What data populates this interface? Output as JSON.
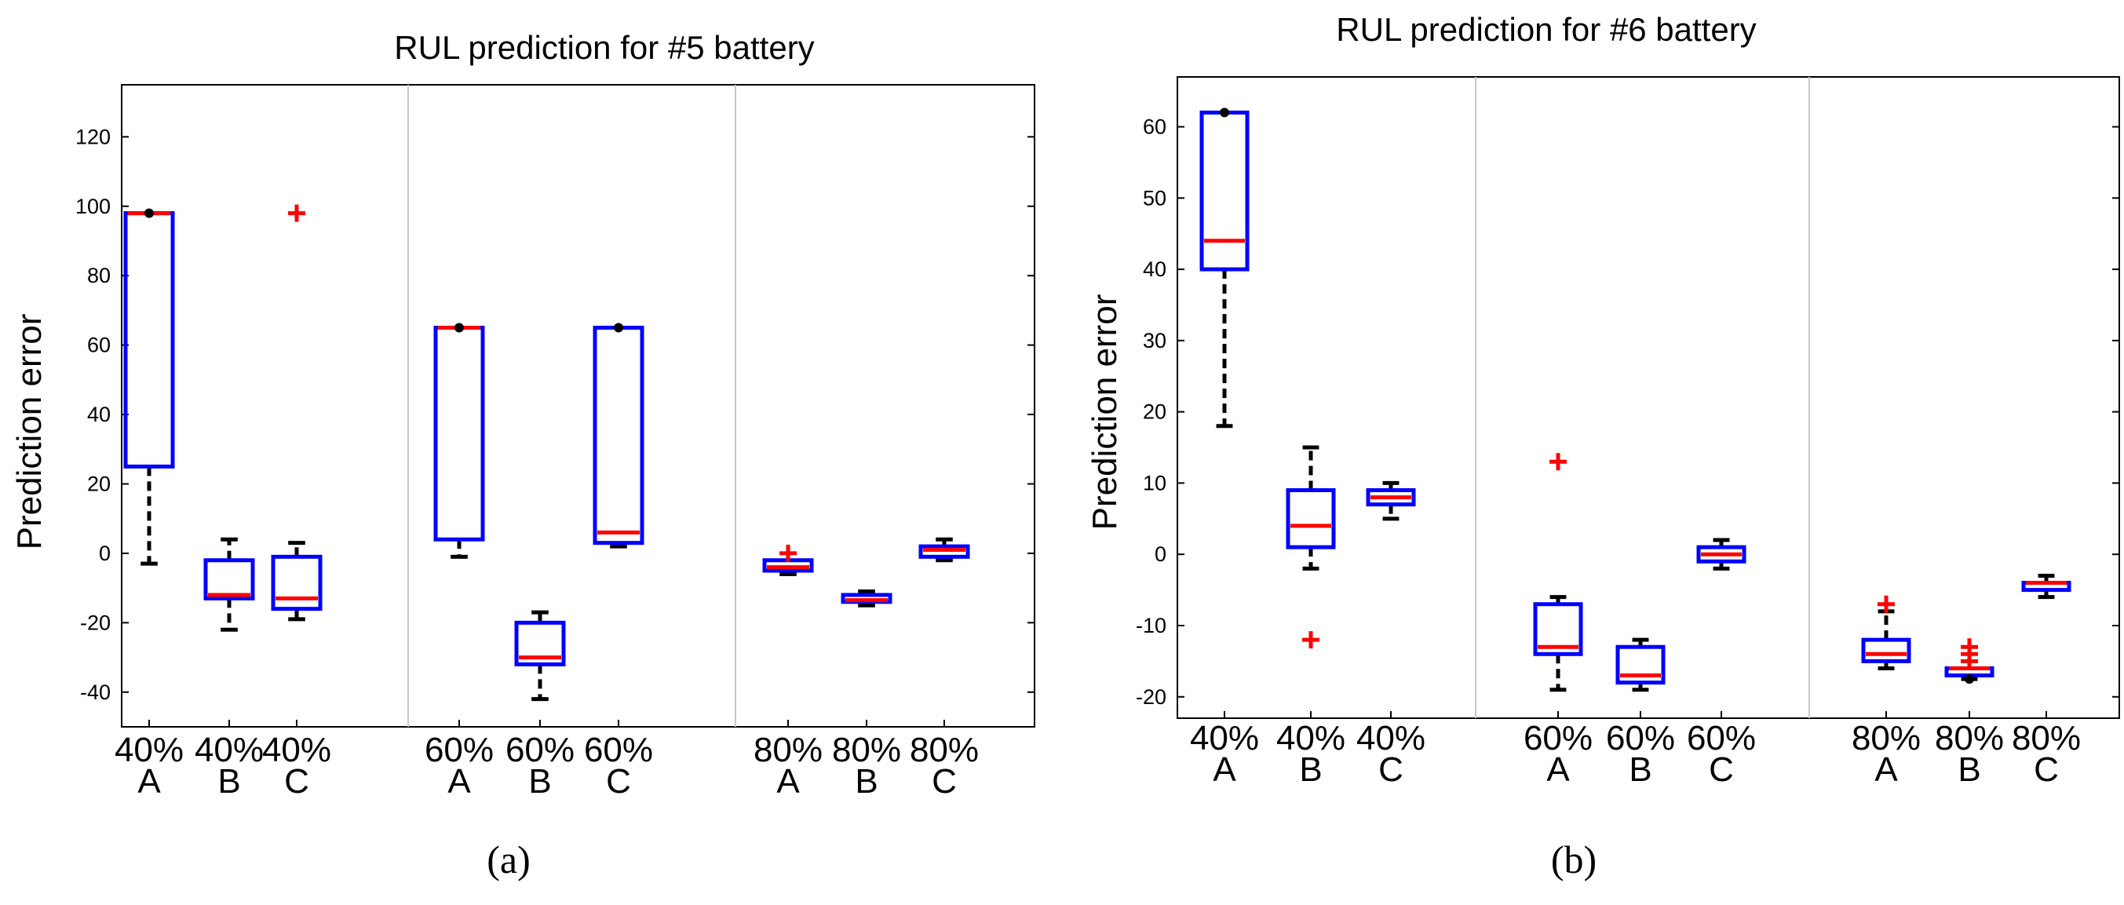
{
  "colors": {
    "box": "#0000ff",
    "median": "#ff0000",
    "outlier": "#ff0000",
    "whisker": "#000000",
    "separator": "#c8c8c8"
  },
  "chart_data": [
    {
      "type": "box",
      "title": "RUL prediction for #5 battery",
      "xlabel": "",
      "ylabel": "Prediction error",
      "caption": "(a)",
      "ylim": [
        -50,
        135
      ],
      "yticks": [
        -40,
        -20,
        0,
        20,
        40,
        60,
        80,
        100,
        120
      ],
      "ytick_labels": [
        "-40",
        "-20",
        "0",
        "20",
        "40",
        "60",
        "80",
        "100",
        "120"
      ],
      "categories": [
        {
          "line1": "40%",
          "line2": "A"
        },
        {
          "line1": "40%",
          "line2": "B"
        },
        {
          "line1": "40%",
          "line2": "C"
        },
        {
          "line1": "60%",
          "line2": "A"
        },
        {
          "line1": "60%",
          "line2": "B"
        },
        {
          "line1": "60%",
          "line2": "C"
        },
        {
          "line1": "80%",
          "line2": "A"
        },
        {
          "line1": "80%",
          "line2": "B"
        },
        {
          "line1": "80%",
          "line2": "C"
        }
      ],
      "groups_separated_after": [
        3,
        6
      ],
      "boxes": [
        {
          "whisker_low": -3,
          "q1": 25,
          "median": 98,
          "q3": 98,
          "whisker_high": 98,
          "dots": [
            98
          ],
          "outliers": []
        },
        {
          "whisker_low": -22,
          "q1": -13,
          "median": -12,
          "q3": -2,
          "whisker_high": 4,
          "dots": [],
          "outliers": []
        },
        {
          "whisker_low": -19,
          "q1": -16,
          "median": -13,
          "q3": -1,
          "whisker_high": 3,
          "dots": [],
          "outliers": [
            98
          ]
        },
        {
          "whisker_low": -1,
          "q1": 4,
          "median": 65,
          "q3": 65,
          "whisker_high": 65,
          "dots": [
            65
          ],
          "outliers": []
        },
        {
          "whisker_low": -42,
          "q1": -32,
          "median": -30,
          "q3": -20,
          "whisker_high": -17,
          "dots": [],
          "outliers": []
        },
        {
          "whisker_low": 2,
          "q1": 3,
          "median": 6,
          "q3": 65,
          "whisker_high": 65,
          "dots": [
            65
          ],
          "outliers": []
        },
        {
          "whisker_low": -6,
          "q1": -5,
          "median": -4,
          "q3": -2,
          "whisker_high": -2,
          "dots": [],
          "outliers": [
            0
          ]
        },
        {
          "whisker_low": -15,
          "q1": -14,
          "median": -13.5,
          "q3": -12,
          "whisker_high": -11,
          "dots": [],
          "outliers": []
        },
        {
          "whisker_low": -2,
          "q1": -1,
          "median": 1,
          "q3": 2,
          "whisker_high": 4,
          "dots": [],
          "outliers": []
        }
      ]
    },
    {
      "type": "box",
      "title": "RUL prediction for #6 battery",
      "xlabel": "",
      "ylabel": "Prediction error",
      "caption": "(b)",
      "ylim": [
        -23,
        67
      ],
      "yticks": [
        -20,
        -10,
        0,
        10,
        20,
        30,
        40,
        50,
        60
      ],
      "ytick_labels": [
        "-20",
        "-10",
        "0",
        "10",
        "20",
        "30",
        "40",
        "50",
        "60"
      ],
      "categories": [
        {
          "line1": "40%",
          "line2": "A"
        },
        {
          "line1": "40%",
          "line2": "B"
        },
        {
          "line1": "40%",
          "line2": "C"
        },
        {
          "line1": "60%",
          "line2": "A"
        },
        {
          "line1": "60%",
          "line2": "B"
        },
        {
          "line1": "60%",
          "line2": "C"
        },
        {
          "line1": "80%",
          "line2": "A"
        },
        {
          "line1": "80%",
          "line2": "B"
        },
        {
          "line1": "80%",
          "line2": "C"
        }
      ],
      "groups_separated_after": [
        3,
        6
      ],
      "boxes": [
        {
          "whisker_low": 18,
          "q1": 40,
          "median": 44,
          "q3": 62,
          "whisker_high": 62,
          "dots": [
            62
          ],
          "outliers": []
        },
        {
          "whisker_low": -2,
          "q1": 1,
          "median": 4,
          "q3": 9,
          "whisker_high": 15,
          "dots": [],
          "outliers": [
            -12
          ]
        },
        {
          "whisker_low": 5,
          "q1": 7,
          "median": 8,
          "q3": 9,
          "whisker_high": 10,
          "dots": [],
          "outliers": []
        },
        {
          "whisker_low": -19,
          "q1": -14,
          "median": -13,
          "q3": -7,
          "whisker_high": -6,
          "dots": [],
          "outliers": [
            13
          ]
        },
        {
          "whisker_low": -19,
          "q1": -18,
          "median": -17,
          "q3": -13,
          "whisker_high": -12,
          "dots": [],
          "outliers": []
        },
        {
          "whisker_low": -2,
          "q1": -1,
          "median": 0,
          "q3": 1,
          "whisker_high": 2,
          "dots": [],
          "outliers": []
        },
        {
          "whisker_low": -16,
          "q1": -15,
          "median": -14,
          "q3": -12,
          "whisker_high": -8,
          "dots": [],
          "outliers": [
            -7
          ]
        },
        {
          "whisker_low": -17.5,
          "q1": -17,
          "median": -16,
          "q3": -16,
          "whisker_high": -16,
          "dots": [
            -17.5
          ],
          "outliers": [
            -13,
            -14,
            -15
          ]
        },
        {
          "whisker_low": -6,
          "q1": -5,
          "median": -4,
          "q3": -4,
          "whisker_high": -3,
          "dots": [],
          "outliers": []
        }
      ]
    }
  ]
}
